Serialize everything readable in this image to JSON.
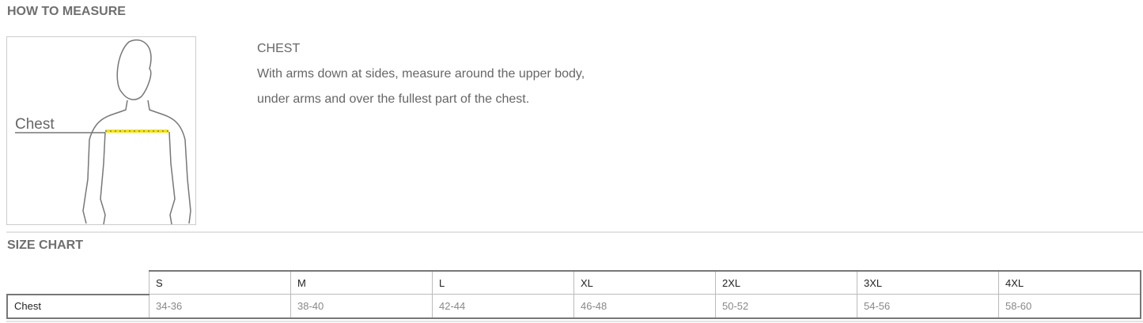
{
  "how_to_measure": {
    "title": "HOW TO MEASURE",
    "figure_label": "Chest",
    "measure_title": "CHEST",
    "lines": [
      "With arms down at sides, measure around the upper body,",
      "under arms and over the fullest part of the chest."
    ],
    "tape_color": "#f2e21a"
  },
  "size_chart": {
    "title": "SIZE CHART",
    "sizes": [
      "S",
      "M",
      "L",
      "XL",
      "2XL",
      "3XL",
      "4XL"
    ],
    "rows": [
      {
        "label": "Chest",
        "values": [
          "34-36",
          "38-40",
          "42-44",
          "46-48",
          "50-52",
          "54-56",
          "58-60"
        ]
      }
    ]
  }
}
